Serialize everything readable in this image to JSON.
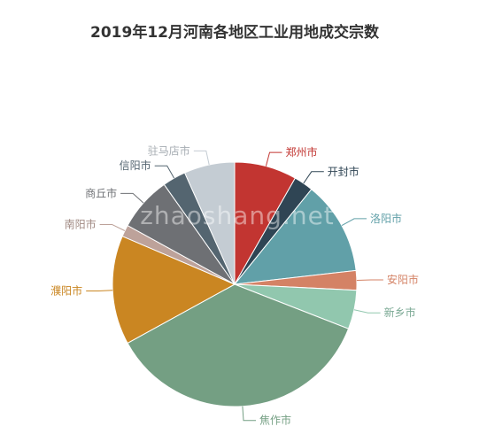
{
  "chart_data": {
    "type": "pie",
    "title": "2019年12月河南各地区工业用地成交宗数",
    "start_angle_deg": 0,
    "direction": "clockwise",
    "slices": [
      {
        "name": "郑州市",
        "value": 8,
        "color": "#c23531"
      },
      {
        "name": "开封市",
        "value": 2.5,
        "color": "#2f4554"
      },
      {
        "name": "洛阳市",
        "value": 12,
        "color": "#61a0a8"
      },
      {
        "name": "安阳市",
        "value": 2.5,
        "color": "#d48265"
      },
      {
        "name": "新乡市",
        "value": 5,
        "color": "#91c7ae"
      },
      {
        "name": "焦作市",
        "value": 35,
        "color": "#749f83"
      },
      {
        "name": "濮阳市",
        "value": 14,
        "color": "#ca8622"
      },
      {
        "name": "南阳市",
        "value": 1.5,
        "color": "#bda29a"
      },
      {
        "name": "商丘市",
        "value": 7,
        "color": "#6e7074"
      },
      {
        "name": "信阳市",
        "value": 3,
        "color": "#546570"
      },
      {
        "name": "驻马店市",
        "value": 6.5,
        "color": "#c4ccd3"
      }
    ]
  },
  "watermark": "zhaoshang.net"
}
